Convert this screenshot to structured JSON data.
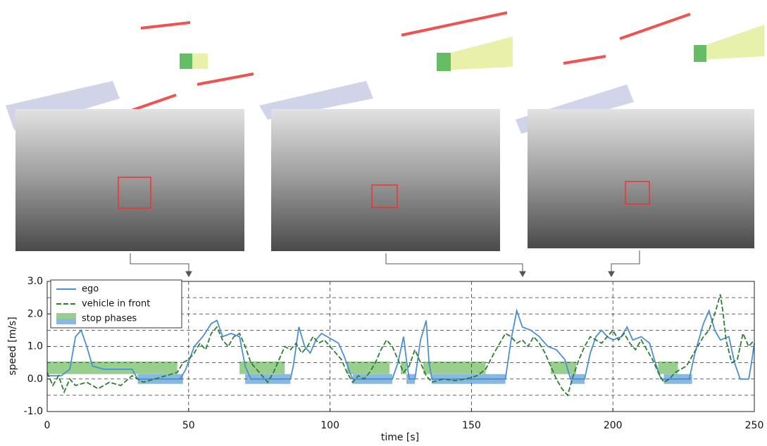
{
  "chart_data": {
    "type": "line",
    "xlabel": "time [s]",
    "ylabel": "speed [m/s]",
    "xlim": [
      0,
      250
    ],
    "ylim": [
      -1,
      3
    ],
    "xticks": [
      0,
      50,
      100,
      150,
      200,
      250
    ],
    "yticks": [
      {
        "value": -1,
        "label": "-1.0"
      },
      {
        "value": 0,
        "label": "0.0"
      },
      {
        "value": 1,
        "label": "1.0"
      },
      {
        "value": 2,
        "label": "2.0"
      },
      {
        "value": 3,
        "label": "3.0"
      }
    ],
    "yminor": [
      -0.5,
      0.5,
      1.5,
      2.5
    ],
    "grid": true,
    "legend": "upper left",
    "series": [
      {
        "name": "ego",
        "color": "#4a90d0",
        "dashed": false,
        "x": [
          0,
          5,
          8,
          10,
          12,
          14,
          16,
          20,
          25,
          30,
          32,
          47,
          49,
          52,
          55,
          58,
          60,
          62,
          65,
          68,
          70,
          72,
          86,
          87,
          89,
          91,
          93,
          95,
          97,
          99,
          103,
          105,
          107,
          108,
          122,
          124,
          126,
          127,
          128,
          130,
          132,
          134,
          135,
          136,
          162,
          164,
          166,
          168,
          171,
          174,
          177,
          180,
          183,
          185,
          190,
          192,
          194,
          196,
          198,
          200,
          203,
          205,
          207,
          210,
          213,
          215,
          217,
          227,
          229,
          232,
          234,
          236,
          238,
          241,
          243,
          245,
          248,
          249,
          250
        ],
        "values": [
          0.1,
          0.1,
          0.3,
          1.3,
          1.5,
          1.0,
          0.4,
          0.3,
          0.3,
          0.3,
          0,
          0,
          0.3,
          1.0,
          1.3,
          1.7,
          1.8,
          1.3,
          1.4,
          1.3,
          0.4,
          0,
          0,
          0.4,
          1.6,
          1.0,
          0.8,
          1.2,
          1.4,
          1.3,
          1.1,
          0.7,
          0.2,
          0,
          0,
          0.5,
          1.3,
          0.6,
          0,
          0,
          1.2,
          1.8,
          0.5,
          0,
          0,
          1.2,
          2.1,
          1.6,
          1.5,
          1.3,
          1.0,
          0.9,
          0.6,
          0,
          0,
          0.8,
          1.3,
          1.5,
          1.3,
          1.2,
          1.3,
          1.6,
          1.2,
          1.3,
          1.1,
          0.5,
          0,
          0,
          0.8,
          1.7,
          2.1,
          1.5,
          1.2,
          1.3,
          0.5,
          0,
          0,
          0.5,
          1.1
        ]
      },
      {
        "name": "vehicle in front",
        "color": "#2e7d32",
        "dashed": true,
        "x": [
          0,
          2,
          4,
          6,
          8,
          10,
          14,
          18,
          22,
          26,
          30,
          34,
          38,
          42,
          46,
          48,
          50,
          52,
          54,
          56,
          58,
          60,
          62,
          64,
          66,
          68,
          70,
          72,
          74,
          76,
          78,
          80,
          82,
          84,
          86,
          88,
          90,
          92,
          94,
          96,
          98,
          100,
          102,
          104,
          106,
          108,
          110,
          112,
          114,
          116,
          118,
          120,
          122,
          124,
          126,
          128,
          130,
          132,
          134,
          136,
          140,
          144,
          148,
          152,
          155,
          158,
          160,
          162,
          164,
          166,
          168,
          170,
          172,
          174,
          176,
          178,
          180,
          182,
          184,
          186,
          188,
          190,
          192,
          194,
          196,
          198,
          200,
          202,
          204,
          206,
          208,
          210,
          212,
          214,
          216,
          218,
          220,
          222,
          224,
          226,
          228,
          230,
          232,
          234,
          236,
          238,
          239,
          240,
          242,
          244,
          246,
          248,
          250
        ],
        "values": [
          0.2,
          -0.2,
          0.1,
          -0.4,
          0,
          -0.2,
          -0.1,
          -0.3,
          -0.1,
          -0.2,
          0.1,
          -0.1,
          0,
          0.1,
          0.2,
          0.5,
          0.6,
          0.8,
          1.1,
          0.9,
          1.4,
          1.6,
          1.2,
          1.0,
          1.3,
          1.4,
          1.0,
          0.5,
          0.3,
          0.1,
          -0.1,
          0.2,
          0.6,
          1.0,
          0.9,
          1.1,
          0.8,
          1.0,
          1.3,
          1.1,
          1.2,
          1.0,
          0.8,
          0.6,
          0.2,
          -0.1,
          0.1,
          0,
          0.2,
          0.5,
          0.9,
          1.2,
          1.0,
          0.6,
          0.2,
          0.4,
          0.9,
          0.5,
          0.1,
          -0.1,
          0,
          -0.05,
          0,
          0.1,
          0.3,
          0.8,
          1.1,
          1.4,
          1.3,
          1.1,
          1.2,
          1.0,
          1.3,
          1.1,
          0.8,
          0.4,
          0,
          -0.3,
          -0.5,
          0.1,
          0.6,
          1.0,
          1.3,
          1.2,
          1.1,
          1.3,
          1.5,
          1.2,
          1.4,
          1.1,
          0.9,
          1.2,
          0.9,
          0.6,
          0.2,
          -0.1,
          0,
          0.2,
          0.3,
          0.4,
          0.7,
          1.0,
          1.3,
          1.5,
          2.0,
          2.6,
          2.0,
          1.2,
          0.5,
          0.6,
          1.4,
          1.0,
          1.2
        ]
      }
    ],
    "stop_phases": {
      "name": "stop phases",
      "ego_color": "#8ab8e0",
      "vehicle_color": "#98cf8f",
      "ego": [
        [
          32,
          48
        ],
        [
          70,
          86
        ],
        [
          108,
          122
        ],
        [
          127,
          130
        ],
        [
          136,
          162
        ],
        [
          185,
          190
        ],
        [
          218,
          228
        ]
      ],
      "vehicle": [
        [
          0,
          46
        ],
        [
          68,
          84
        ],
        [
          106,
          121
        ],
        [
          125,
          127
        ],
        [
          133,
          155
        ],
        [
          178,
          187
        ],
        [
          216,
          223
        ]
      ]
    }
  }
}
